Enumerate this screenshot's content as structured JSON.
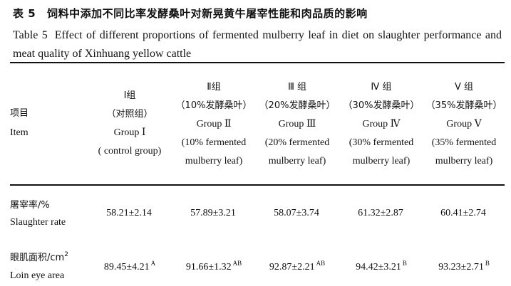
{
  "title": {
    "zh_num": "表 5",
    "zh_text": "饲料中添加不同比率发酵桑叶对新晃黄牛屠宰性能和肉品质的影响",
    "en_num": "Table 5",
    "en_text": "Effect of different proportions of fermented mulberry leaf in diet on slaughter performance and meat quality of Xinhuang yellow cattle"
  },
  "header": {
    "item_zh": "项目",
    "item_en": "Item",
    "groups": [
      {
        "name_zh": "Ⅰ组",
        "desc_zh": "（对照组）",
        "name_en": "Group Ⅰ",
        "desc_en": "( control group)",
        "desc_en2": ""
      },
      {
        "name_zh": "Ⅱ组",
        "desc_zh": "（10%发酵桑叶）",
        "name_en": "Group Ⅱ",
        "desc_en": "(10% fermented",
        "desc_en2": "mulberry leaf)"
      },
      {
        "name_zh": "Ⅲ 组",
        "desc_zh": "（20%发酵桑叶）",
        "name_en": "Group Ⅲ",
        "desc_en": "(20% fermented",
        "desc_en2": "mulberry leaf)"
      },
      {
        "name_zh": "Ⅳ 组",
        "desc_zh": "（30%发酵桑叶）",
        "name_en": "Group Ⅳ",
        "desc_en": "(30% fermented",
        "desc_en2": "mulberry leaf)"
      },
      {
        "name_zh": "Ⅴ 组",
        "desc_zh": "（35%发酵桑叶）",
        "name_en": "Group Ⅴ",
        "desc_en": "(35% fermented",
        "desc_en2": "mulberry leaf)"
      }
    ]
  },
  "rows": [
    {
      "label_zh": "屠宰率/%",
      "label_en": "Slaughter rate",
      "values": [
        {
          "v": "58.21±2.14",
          "sup": ""
        },
        {
          "v": "57.89±3.21",
          "sup": ""
        },
        {
          "v": "58.07±3.74",
          "sup": ""
        },
        {
          "v": "61.32±2.87",
          "sup": ""
        },
        {
          "v": "60.41±2.74",
          "sup": ""
        }
      ]
    },
    {
      "label_zh": "眼肌面积/cm",
      "label_zh_sup": "2",
      "label_en": "Loin eye area",
      "values": [
        {
          "v": "89.45±4.21",
          "sup": "A"
        },
        {
          "v": "91.66±1.32",
          "sup": "AB"
        },
        {
          "v": "92.87±2.21",
          "sup": "AB"
        },
        {
          "v": "94.42±3.21",
          "sup": "B"
        },
        {
          "v": "93.23±2.71",
          "sup": "B"
        }
      ]
    }
  ]
}
